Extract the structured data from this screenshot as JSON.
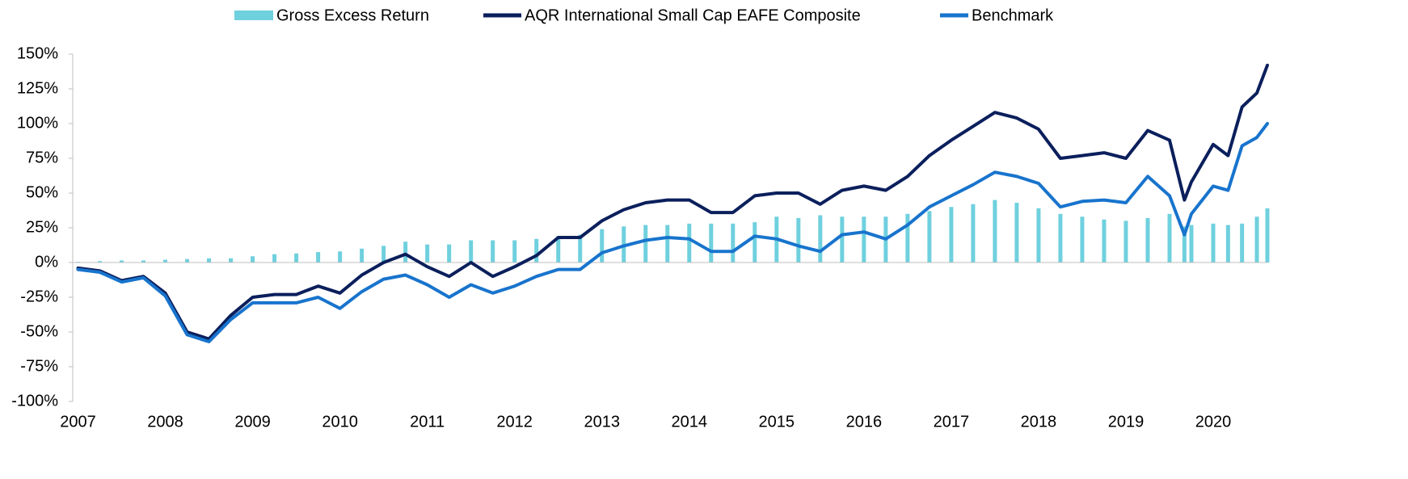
{
  "chart_data": {
    "type": "bar_line",
    "x": [
      2007,
      2007.25,
      2007.5,
      2007.75,
      2008,
      2008.25,
      2008.5,
      2008.75,
      2009,
      2009.25,
      2009.5,
      2009.75,
      2010,
      2010.25,
      2010.5,
      2010.75,
      2011,
      2011.25,
      2011.5,
      2011.75,
      2012,
      2012.25,
      2012.5,
      2012.75,
      2013,
      2013.25,
      2013.5,
      2013.75,
      2014,
      2014.25,
      2014.5,
      2014.75,
      2015,
      2015.25,
      2015.5,
      2015.75,
      2016,
      2016.25,
      2016.5,
      2016.75,
      2017,
      2017.25,
      2017.5,
      2017.75,
      2018,
      2018.25,
      2018.5,
      2018.75,
      2019,
      2019.25,
      2019.5,
      2019.67,
      2019.75,
      2020,
      2020.17,
      2020.33,
      2020.5,
      2020.62
    ],
    "series": [
      {
        "name": "Gross Excess Return",
        "kind": "bar",
        "color": "#6fd0de",
        "values": [
          0.5,
          1,
          1.5,
          1.5,
          2,
          2.5,
          3,
          3,
          4.5,
          6,
          6.5,
          7.5,
          8,
          10,
          12,
          15,
          13,
          13,
          16,
          16,
          16,
          17,
          19,
          20,
          24,
          26,
          27,
          27,
          28,
          28,
          28,
          29,
          33,
          32,
          34,
          33,
          33,
          33,
          35,
          37,
          40,
          42,
          45,
          43,
          39,
          35,
          33,
          31,
          30,
          32,
          35,
          26,
          27,
          28,
          27,
          28,
          33,
          39
        ]
      },
      {
        "name": "AQR International Small Cap EAFE Composite",
        "kind": "line",
        "color": "#0b1f5c",
        "values": [
          -4,
          -6,
          -13,
          -10,
          -22,
          -50,
          -55,
          -38,
          -25,
          -23,
          -23,
          -17,
          -22,
          -9,
          0,
          6,
          -3,
          -10,
          0,
          -10,
          -3,
          5,
          18,
          18,
          30,
          38,
          43,
          45,
          45,
          36,
          36,
          48,
          50,
          50,
          42,
          52,
          55,
          52,
          62,
          77,
          88,
          98,
          108,
          104,
          96,
          75,
          77,
          79,
          75,
          95,
          88,
          45,
          58,
          85,
          77,
          112,
          122,
          142
        ]
      },
      {
        "name": "Benchmark",
        "kind": "line",
        "color": "#1874cd",
        "values": [
          -5,
          -7,
          -14,
          -11,
          -24,
          -52,
          -57,
          -41,
          -29,
          -29,
          -29,
          -25,
          -33,
          -21,
          -12,
          -9,
          -16,
          -25,
          -16,
          -22,
          -17,
          -10,
          -5,
          -5,
          7,
          12,
          16,
          18,
          17,
          8,
          8,
          19,
          17,
          12,
          8,
          20,
          22,
          17,
          27,
          40,
          48,
          56,
          65,
          62,
          57,
          40,
          44,
          45,
          43,
          62,
          48,
          20,
          35,
          55,
          52,
          84,
          90,
          100
        ]
      }
    ],
    "xlim": [
      2006.94,
      2020.62
    ],
    "xticks": [
      2007,
      2008,
      2009,
      2010,
      2011,
      2012,
      2013,
      2014,
      2015,
      2016,
      2017,
      2018,
      2019,
      2020
    ],
    "ylim": [
      -100,
      150
    ],
    "yticks": [
      {
        "value": -100,
        "label": "-100%"
      },
      {
        "value": -75,
        "label": "-75%"
      },
      {
        "value": -50,
        "label": "-50%"
      },
      {
        "value": -25,
        "label": "-25%"
      },
      {
        "value": 0,
        "label": "0%"
      },
      {
        "value": 25,
        "label": "25%"
      },
      {
        "value": 50,
        "label": "50%"
      },
      {
        "value": 75,
        "label": "75%"
      },
      {
        "value": 100,
        "label": "100%"
      },
      {
        "value": 125,
        "label": "125%"
      },
      {
        "value": 150,
        "label": "150%"
      }
    ],
    "legend": "top"
  }
}
